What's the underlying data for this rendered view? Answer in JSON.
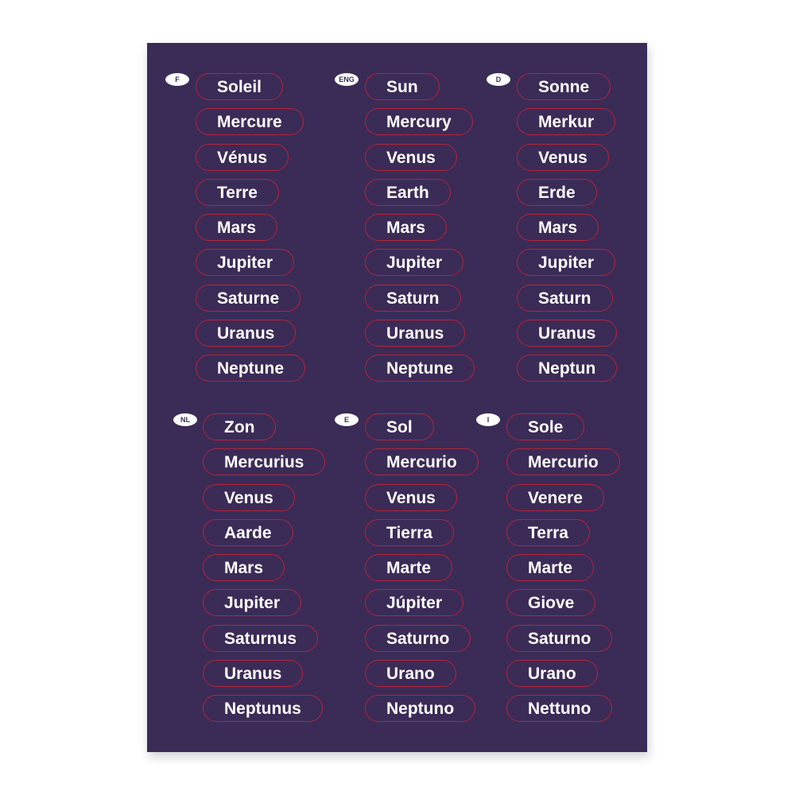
{
  "colors": {
    "sheet": "#3b2b57",
    "outline": "#b5243a",
    "text": "#ffffff"
  },
  "groups": [
    {
      "lang": "F",
      "names": [
        "Soleil",
        "Mercure",
        "Vénus",
        "Terre",
        "Mars",
        "Jupiter",
        "Saturne",
        "Uranus",
        "Neptune"
      ]
    },
    {
      "lang": "ENG",
      "names": [
        "Sun",
        "Mercury",
        "Venus",
        "Earth",
        "Mars",
        "Jupiter",
        "Saturn",
        "Uranus",
        "Neptune"
      ]
    },
    {
      "lang": "D",
      "names": [
        "Sonne",
        "Merkur",
        "Venus",
        "Erde",
        "Mars",
        "Jupiter",
        "Saturn",
        "Uranus",
        "Neptun"
      ]
    },
    {
      "lang": "NL",
      "names": [
        "Zon",
        "Mercurius",
        "Venus",
        "Aarde",
        "Mars",
        "Jupiter",
        "Saturnus",
        "Uranus",
        "Neptunus"
      ]
    },
    {
      "lang": "E",
      "names": [
        "Sol",
        "Mercurio",
        "Venus",
        "Tierra",
        "Marte",
        "Júpiter",
        "Saturno",
        "Urano",
        "Neptuno"
      ]
    },
    {
      "lang": "I",
      "names": [
        "Sole",
        "Mercurio",
        "Venere",
        "Terra",
        "Marte",
        "Giove",
        "Saturno",
        "Urano",
        "Nettuno"
      ]
    }
  ]
}
